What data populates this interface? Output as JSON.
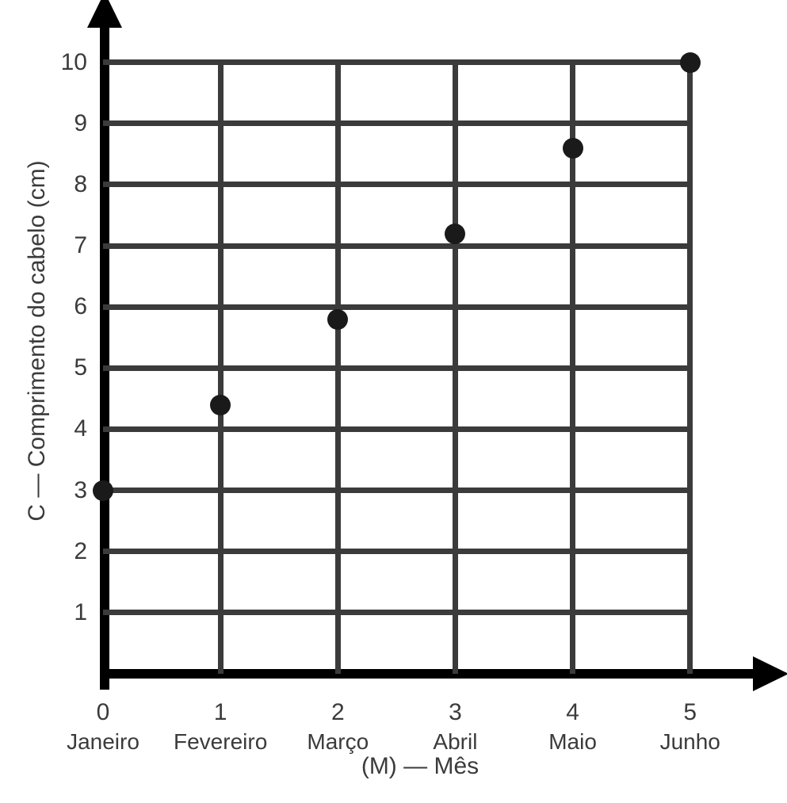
{
  "chart": {
    "type": "scatter",
    "y_label": "C — Comprimento do cabelo (cm)",
    "x_label": "(M) — Mês",
    "background_color": "#ffffff",
    "grid_color": "#3b3b3b",
    "axis_color": "#000000",
    "point_color": "#1a1a1a",
    "tick_label_color": "#3b3b3b",
    "axis_label_fontsize": 30,
    "tick_fontsize": 30,
    "month_fontsize": 28,
    "line_width": 7,
    "axis_line_width": 12,
    "point_diameter": 26,
    "y": {
      "ticks": [
        1,
        2,
        3,
        4,
        5,
        6,
        7,
        8,
        9,
        10
      ],
      "lim": [
        0,
        10.5
      ],
      "grid_at": [
        1,
        2,
        3,
        4,
        5,
        6,
        7,
        8,
        9,
        10
      ]
    },
    "x": {
      "ticks": [
        0,
        1,
        2,
        3,
        4,
        5
      ],
      "months": [
        "Janeiro",
        "Fevereiro",
        "Março",
        "Abril",
        "Maio",
        "Junho"
      ],
      "lim": [
        0,
        5.4
      ],
      "grid_at": [
        1,
        2,
        3,
        4,
        5
      ]
    },
    "data": {
      "x": [
        0,
        1,
        2,
        3,
        4,
        5
      ],
      "y": [
        3,
        4.4,
        5.8,
        7.2,
        8.6,
        10
      ]
    }
  }
}
